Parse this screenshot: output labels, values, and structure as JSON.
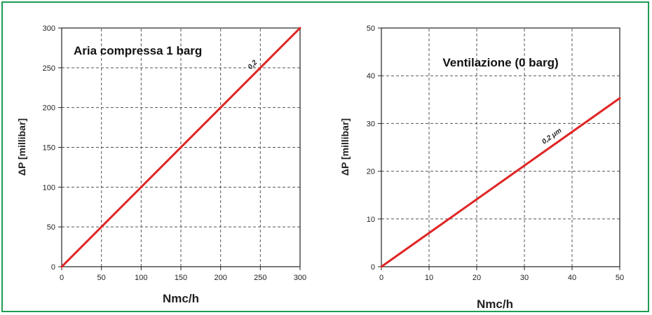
{
  "colors": {
    "frame": "#1f9c52",
    "series": "#e02424",
    "grid": "#555555",
    "axis": "#222222"
  },
  "chart_data": [
    {
      "type": "line",
      "title": "Aria compressa 1 barg",
      "xlabel": "Nmc/h",
      "ylabel": "ΔP [millibar]",
      "xlim": [
        0,
        300
      ],
      "ylim": [
        0,
        300
      ],
      "xticks": [
        0,
        50,
        100,
        150,
        200,
        250,
        300
      ],
      "yticks": [
        0,
        50,
        100,
        150,
        200,
        250,
        300
      ],
      "grid": true,
      "series": [
        {
          "name": "0,2",
          "x": [
            0,
            300
          ],
          "y": [
            0,
            300
          ],
          "label_at": [
            242,
            252
          ]
        }
      ]
    },
    {
      "type": "line",
      "title": "Ventilazione (0 barg)",
      "xlabel": "Nmc/h",
      "ylabel": "ΔP [millibar]",
      "xlim": [
        0,
        50
      ],
      "ylim": [
        0,
        50
      ],
      "xticks": [
        0,
        10,
        20,
        30,
        40,
        50
      ],
      "yticks": [
        0,
        10,
        20,
        30,
        40,
        50
      ],
      "grid": true,
      "series": [
        {
          "name": "0,2 μm",
          "x": [
            0,
            50
          ],
          "y": [
            0,
            35.3
          ],
          "label_at": [
            36,
            27
          ]
        }
      ]
    }
  ]
}
